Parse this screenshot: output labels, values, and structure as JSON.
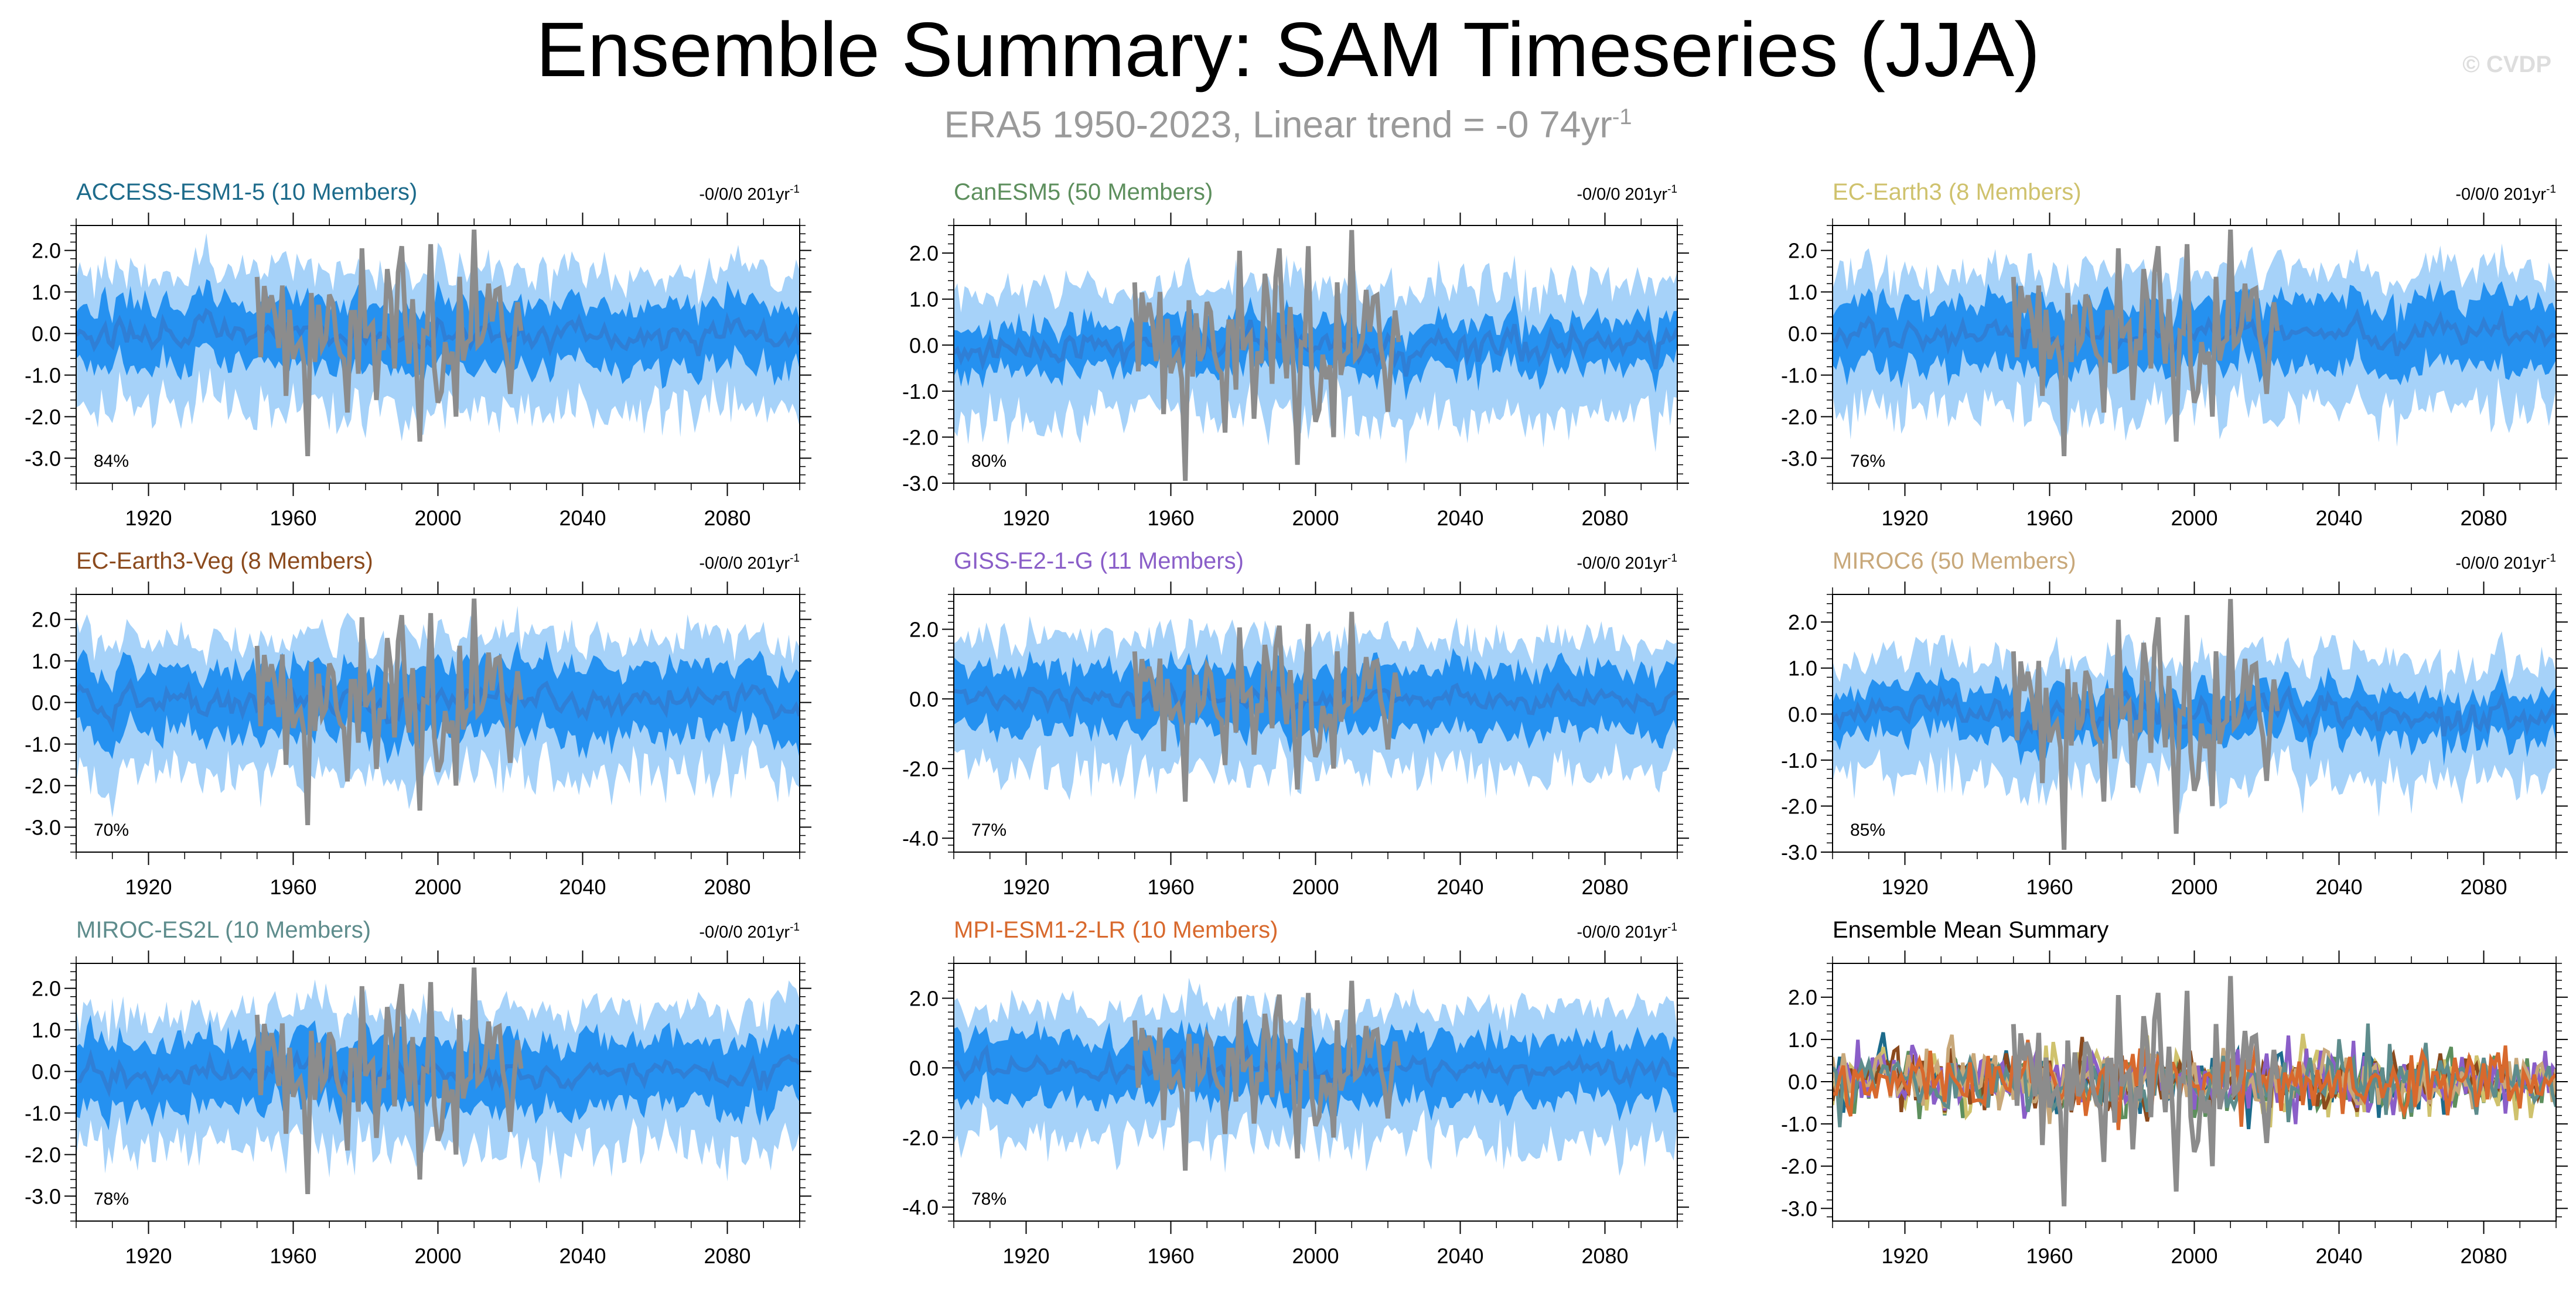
{
  "page": {
    "title": "Ensemble Summary: SAM Timeseries (JJA)",
    "subtitle_main": "ERA5 1950-2023, Linear trend = -0 74yr",
    "subtitle_sup": "-1",
    "watermark": "© CVDP"
  },
  "colors": {
    "spread_outer": "#a6d2f9",
    "spread_inner": "#2591f0",
    "ensemble_mean": "#2f7fd6",
    "observed": "#8c8c8c",
    "axis": "#000000"
  },
  "chart_data": [
    {
      "type": "area",
      "title": "ACCESS-ESM1-5 (10 Members)",
      "title_color": "#1d6b8b",
      "trend_label": "-0/0/0 201yr",
      "trend_sup": "-1",
      "percent_label": "84%",
      "ylim": [
        -3.6,
        2.6
      ],
      "yticks": [
        2,
        1,
        0,
        -1,
        -2,
        -3
      ],
      "ytick_labels": [
        "2.0",
        "1.0",
        "0.0",
        "-1.0",
        "-2.0",
        "-3.0"
      ],
      "xlim": [
        1900,
        2100
      ],
      "xticks": [
        1920,
        1960,
        2000,
        2040,
        2080
      ],
      "xtick_labels": [
        "1920",
        "1960",
        "2000",
        "2040",
        "2080"
      ],
      "outer_halfwidth": 1.5,
      "inner_halfwidth": 0.75,
      "obs_years": [
        1950,
        2023
      ],
      "seed": 11
    },
    {
      "type": "area",
      "title": "CanESM5 (50 Members)",
      "title_color": "#5d8f5d",
      "trend_label": "-0/0/0 201yr",
      "trend_sup": "-1",
      "percent_label": "80%",
      "ylim": [
        -3.0,
        2.6
      ],
      "yticks": [
        2,
        1,
        0,
        -1,
        -2,
        -3
      ],
      "ytick_labels": [
        "2.0",
        "1.0",
        "0.0",
        "-1.0",
        "-2.0",
        "-3.0"
      ],
      "xlim": [
        1900,
        2100
      ],
      "xticks": [
        1920,
        1960,
        2000,
        2040,
        2080
      ],
      "xtick_labels": [
        "1920",
        "1960",
        "2000",
        "2040",
        "2080"
      ],
      "outer_halfwidth": 1.3,
      "inner_halfwidth": 0.5,
      "obs_years": [
        1950,
        2023
      ],
      "seed": 23
    },
    {
      "type": "area",
      "title": "EC-Earth3 (8 Members)",
      "title_color": "#cfc26d",
      "trend_label": "-0/0/0 201yr",
      "trend_sup": "-1",
      "percent_label": "76%",
      "ylim": [
        -3.6,
        2.6
      ],
      "yticks": [
        2,
        1,
        0,
        -1,
        -2,
        -3
      ],
      "ytick_labels": [
        "2.0",
        "1.0",
        "0.0",
        "-1.0",
        "-2.0",
        "-3.0"
      ],
      "xlim": [
        1900,
        2100
      ],
      "xticks": [
        1920,
        1960,
        2000,
        2040,
        2080
      ],
      "xtick_labels": [
        "1920",
        "1960",
        "2000",
        "2040",
        "2080"
      ],
      "outer_halfwidth": 1.5,
      "inner_halfwidth": 0.8,
      "obs_years": [
        1950,
        2023
      ],
      "seed": 37
    },
    {
      "type": "area",
      "title": "EC-Earth3-Veg (8 Members)",
      "title_color": "#8b4a1d",
      "trend_label": "-0/0/0 201yr",
      "trend_sup": "-1",
      "percent_label": "70%",
      "ylim": [
        -3.6,
        2.6
      ],
      "yticks": [
        2,
        1,
        0,
        -1,
        -2,
        -3
      ],
      "ytick_labels": [
        "2.0",
        "1.0",
        "0.0",
        "-1.0",
        "-2.0",
        "-3.0"
      ],
      "xlim": [
        1900,
        2100
      ],
      "xticks": [
        1920,
        1960,
        2000,
        2040,
        2080
      ],
      "xtick_labels": [
        "1920",
        "1960",
        "2000",
        "2040",
        "2080"
      ],
      "outer_halfwidth": 1.5,
      "inner_halfwidth": 0.8,
      "obs_years": [
        1950,
        2023
      ],
      "seed": 41
    },
    {
      "type": "area",
      "title": "GISS-E2-1-G (11 Members)",
      "title_color": "#8a5ec8",
      "trend_label": "-0/0/0 201yr",
      "trend_sup": "-1",
      "percent_label": "77%",
      "ylim": [
        -4.4,
        3.0
      ],
      "yticks": [
        2,
        0,
        -2,
        -4
      ],
      "ytick_labels": [
        "2.0",
        "0.0",
        "-2.0",
        "-4.0"
      ],
      "xlim": [
        1900,
        2100
      ],
      "xticks": [
        1920,
        1960,
        2000,
        2040,
        2080
      ],
      "xtick_labels": [
        "1920",
        "1960",
        "2000",
        "2040",
        "2080"
      ],
      "outer_halfwidth": 1.7,
      "inner_halfwidth": 0.9,
      "obs_years": [
        1950,
        2023
      ],
      "seed": 53
    },
    {
      "type": "area",
      "title": "MIROC6 (50 Members)",
      "title_color": "#c8a87a",
      "trend_label": "-0/0/0 201yr",
      "trend_sup": "-1",
      "percent_label": "85%",
      "ylim": [
        -3.0,
        2.6
      ],
      "yticks": [
        2,
        1,
        0,
        -1,
        -2,
        -3
      ],
      "ytick_labels": [
        "2.0",
        "1.0",
        "0.0",
        "-1.0",
        "-2.0",
        "-3.0"
      ],
      "xlim": [
        1900,
        2100
      ],
      "xticks": [
        1920,
        1960,
        2000,
        2040,
        2080
      ],
      "xtick_labels": [
        "1920",
        "1960",
        "2000",
        "2040",
        "2080"
      ],
      "outer_halfwidth": 1.2,
      "inner_halfwidth": 0.5,
      "obs_years": [
        1950,
        2023
      ],
      "seed": 67
    },
    {
      "type": "area",
      "title": "MIROC-ES2L (10 Members)",
      "title_color": "#5e8c8c",
      "trend_label": "-0/0/0 201yr",
      "trend_sup": "-1",
      "percent_label": "78%",
      "ylim": [
        -3.6,
        2.6
      ],
      "yticks": [
        2,
        1,
        0,
        -1,
        -2,
        -3
      ],
      "ytick_labels": [
        "2.0",
        "1.0",
        "0.0",
        "-1.0",
        "-2.0",
        "-3.0"
      ],
      "xlim": [
        1900,
        2100
      ],
      "xticks": [
        1920,
        1960,
        2000,
        2040,
        2080
      ],
      "xtick_labels": [
        "1920",
        "1960",
        "2000",
        "2040",
        "2080"
      ],
      "outer_halfwidth": 1.5,
      "inner_halfwidth": 0.8,
      "obs_years": [
        1950,
        2023
      ],
      "seed": 79
    },
    {
      "type": "area",
      "title": "MPI-ESM1-2-LR (10 Members)",
      "title_color": "#d8692d",
      "trend_label": "-0/0/0 201yr",
      "trend_sup": "-1",
      "percent_label": "78%",
      "ylim": [
        -4.4,
        3.0
      ],
      "yticks": [
        2,
        0,
        -2,
        -4
      ],
      "ytick_labels": [
        "2.0",
        "0.0",
        "-2.0",
        "-4.0"
      ],
      "xlim": [
        1900,
        2100
      ],
      "xticks": [
        1920,
        1960,
        2000,
        2040,
        2080
      ],
      "xtick_labels": [
        "1920",
        "1960",
        "2000",
        "2040",
        "2080"
      ],
      "outer_halfwidth": 1.7,
      "inner_halfwidth": 0.9,
      "obs_years": [
        1950,
        2023
      ],
      "seed": 83
    },
    {
      "type": "line",
      "title": "Ensemble Mean Summary",
      "title_color": "#000000",
      "trend_label": "",
      "trend_sup": "",
      "percent_label": "",
      "ylim": [
        -3.3,
        2.8
      ],
      "yticks": [
        2,
        1,
        0,
        -1,
        -2,
        -3
      ],
      "ytick_labels": [
        "2.0",
        "1.0",
        "0.0",
        "-1.0",
        "-2.0",
        "-3.0"
      ],
      "xlim": [
        1900,
        2100
      ],
      "xticks": [
        1920,
        1960,
        2000,
        2040,
        2080
      ],
      "xtick_labels": [
        "1920",
        "1960",
        "2000",
        "2040",
        "2080"
      ],
      "obs_years": [
        1950,
        2023
      ],
      "series_colors": [
        "#1d6b8b",
        "#5d8f5d",
        "#cfc26d",
        "#8b4a1d",
        "#8a5ec8",
        "#c8a87a",
        "#5e8c8c",
        "#d8692d"
      ],
      "seed": 97
    }
  ]
}
